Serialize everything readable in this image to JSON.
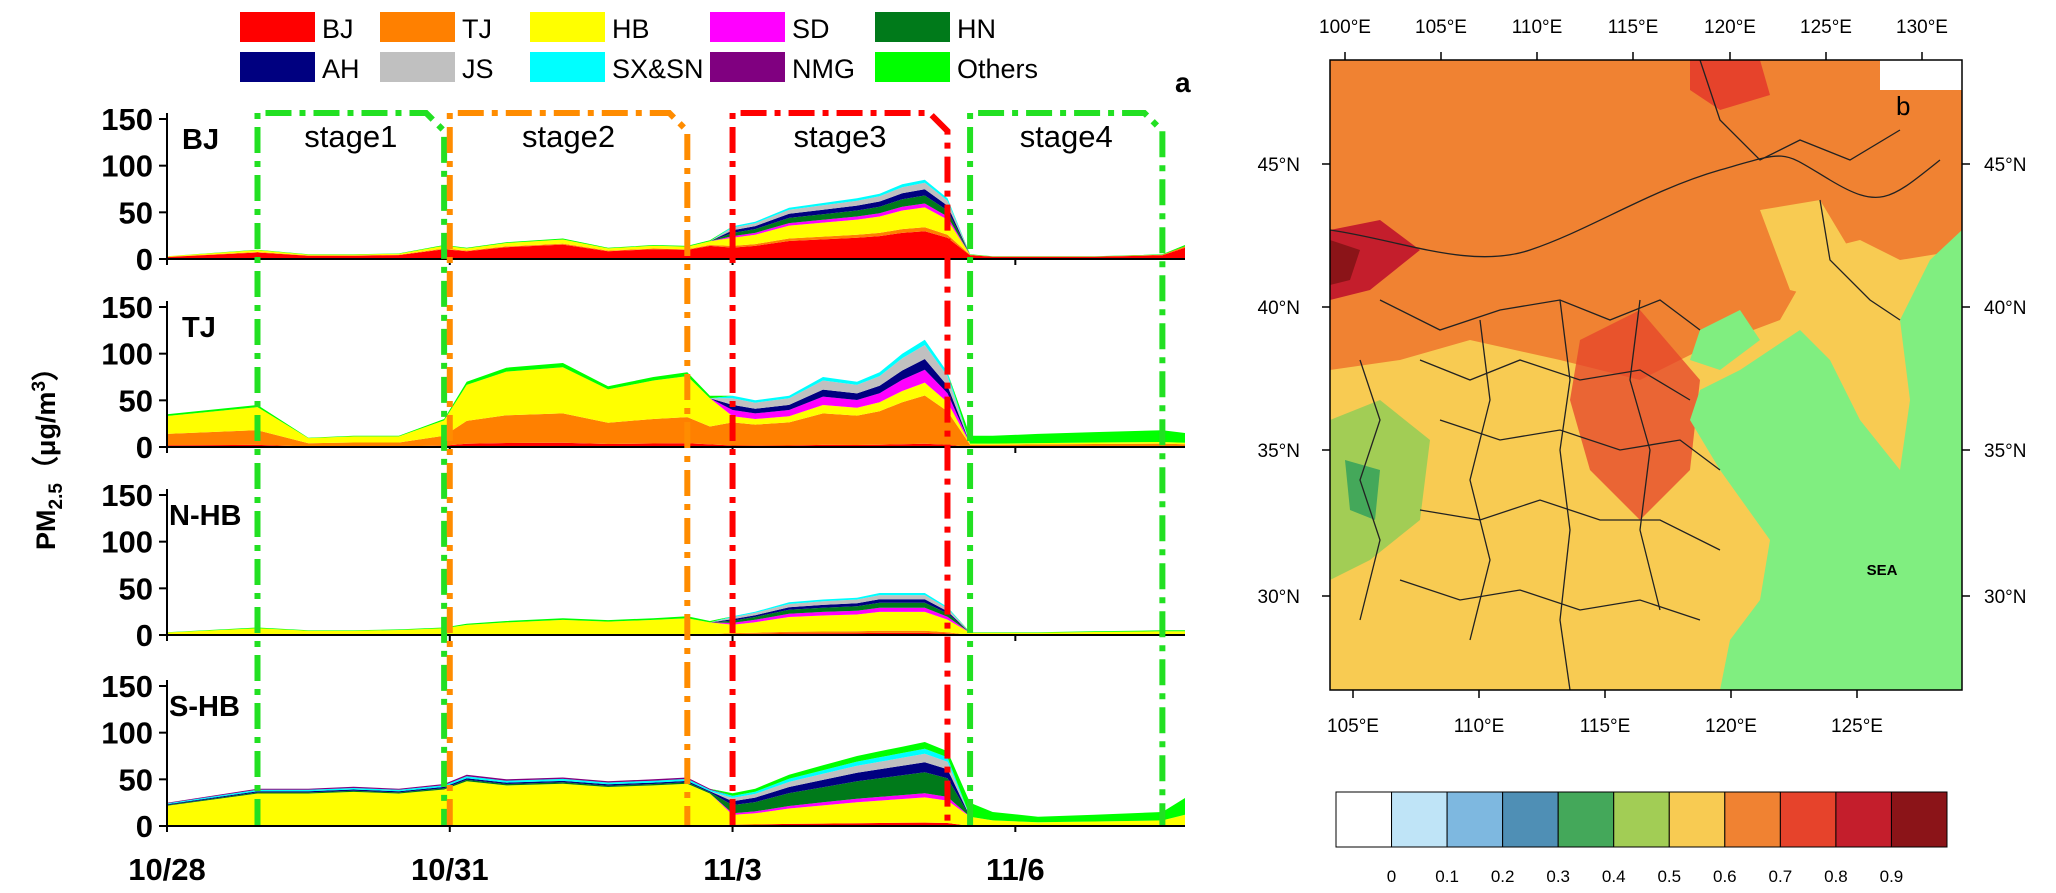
{
  "figure": {
    "panel_a_label": "a",
    "panel_b_label": "b",
    "ylabel_main": "PM",
    "ylabel_sub": "2.5",
    "ylabel_units": "（μg/m",
    "ylabel_sup": "3",
    "ylabel_close": "）"
  },
  "legend": [
    {
      "name": "BJ",
      "color": "#ff0000"
    },
    {
      "name": "TJ",
      "color": "#ff8000"
    },
    {
      "name": "HB",
      "color": "#ffff00"
    },
    {
      "name": "SD",
      "color": "#ff00ff"
    },
    {
      "name": "HN",
      "color": "#007a1a"
    },
    {
      "name": "AH",
      "color": "#000080"
    },
    {
      "name": "JS",
      "color": "#c0c0c0"
    },
    {
      "name": "SX&SN",
      "color": "#00ffff"
    },
    {
      "name": "NMG",
      "color": "#800080"
    },
    {
      "name": "Others",
      "color": "#00ff00"
    }
  ],
  "stages": [
    {
      "label": "stage1",
      "start": 1.6,
      "end": 4.9,
      "color": "#22e022"
    },
    {
      "label": "stage2",
      "start": 5.0,
      "end": 9.2,
      "color": "#ff8c00"
    },
    {
      "label": "stage3",
      "start": 10.0,
      "end": 13.8,
      "color": "#ff0000"
    },
    {
      "label": "stage4",
      "start": 14.2,
      "end": 17.6,
      "color": "#22e022"
    }
  ],
  "chart_data": [
    {
      "type": "area",
      "subplots": [
        "BJ",
        "TJ",
        "N-HB",
        "S-HB"
      ],
      "x_ticks": [
        "10/28",
        "10/31",
        "11/3",
        "11/6"
      ],
      "x_tick_positions": [
        0,
        5,
        10,
        15
      ],
      "xlim": [
        0,
        18
      ],
      "ylim": [
        0,
        150
      ],
      "y_ticks": [
        0,
        50,
        100,
        150
      ],
      "stacked_series_order": [
        "BJ",
        "TJ",
        "HB",
        "SD",
        "HN",
        "AH",
        "JS",
        "SX&SN",
        "NMG",
        "Others"
      ],
      "x": [
        0,
        1.6,
        2.5,
        3.3,
        4.1,
        4.9,
        5.3,
        6.0,
        7.0,
        7.8,
        8.6,
        9.2,
        9.6,
        10.0,
        10.4,
        11.0,
        11.6,
        12.2,
        12.6,
        13.0,
        13.4,
        13.8,
        14.2,
        14.6,
        15.4,
        16.4,
        17.6,
        18.0
      ],
      "totals": {
        "BJ": [
          3,
          10,
          5,
          5,
          6,
          15,
          12,
          18,
          22,
          12,
          15,
          14,
          20,
          35,
          40,
          55,
          60,
          65,
          70,
          80,
          85,
          65,
          5,
          3,
          3,
          3,
          5,
          15
        ],
        "TJ": [
          35,
          45,
          10,
          12,
          12,
          30,
          70,
          85,
          90,
          65,
          75,
          80,
          55,
          55,
          50,
          55,
          75,
          70,
          80,
          100,
          115,
          80,
          12,
          12,
          14,
          16,
          18,
          15
        ],
        "N-HB": [
          3,
          8,
          5,
          5,
          6,
          8,
          12,
          15,
          18,
          16,
          18,
          20,
          15,
          20,
          25,
          35,
          38,
          40,
          45,
          45,
          45,
          30,
          3,
          3,
          3,
          4,
          5,
          5
        ],
        "S-HB": [
          25,
          40,
          40,
          42,
          40,
          45,
          55,
          50,
          52,
          48,
          50,
          52,
          40,
          35,
          40,
          55,
          65,
          75,
          80,
          85,
          90,
          80,
          25,
          15,
          10,
          12,
          15,
          30
        ]
      }
    },
    {
      "type": "heatmap",
      "title": "",
      "annotation": "SEA",
      "lon_ticks_top": [
        "100°E",
        "105°E",
        "110°E",
        "115°E",
        "120°E",
        "125°E",
        "130°E"
      ],
      "lon_ticks_bottom": [
        "105°E",
        "110°E",
        "115°E",
        "120°E",
        "125°E"
      ],
      "lat_ticks": [
        "45°N",
        "40°N",
        "35°N",
        "30°N"
      ],
      "colorbar_ticks": [
        "0",
        "0.1",
        "0.2",
        "0.3",
        "0.4",
        "0.5",
        "0.6",
        "0.7",
        "0.8",
        "0.9"
      ],
      "colorbar_colors": [
        "#ffffff",
        "#bfe4f7",
        "#7eb8e0",
        "#4f8fb5",
        "#44a85a",
        "#a2cd55",
        "#f8cb52",
        "#f08232",
        "#e6432b",
        "#c41e2c",
        "#8b1418"
      ]
    }
  ]
}
